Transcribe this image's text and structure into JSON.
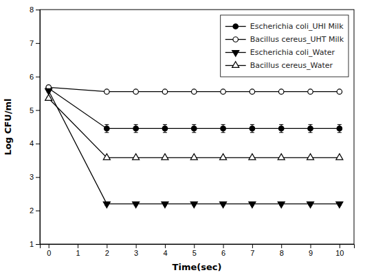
{
  "chart_data": {
    "type": "line",
    "xlabel": "Time(sec)",
    "ylabel": "Log CFU/ml",
    "x": [
      0,
      2,
      3,
      4,
      5,
      6,
      7,
      8,
      9,
      10
    ],
    "series": [
      {
        "name": "Escherichia coli_UHI Milk",
        "color": "#000000",
        "marker": "circle",
        "line_style": "solid",
        "values": [
          5.65,
          4.45,
          4.45,
          4.45,
          4.45,
          4.45,
          4.45,
          4.45,
          4.45,
          4.45
        ],
        "errors": [
          0.05,
          0.12,
          0.12,
          0.12,
          0.12,
          0.12,
          0.12,
          0.12,
          0.12,
          0.12
        ]
      },
      {
        "name": "Bacillus cereus_UHT Milk",
        "color": "#000000",
        "marker": "circle-open",
        "line_style": "solid",
        "values": [
          5.68,
          5.55,
          5.55,
          5.55,
          5.55,
          5.55,
          5.55,
          5.55,
          5.55,
          5.55
        ],
        "errors": [
          0.03,
          0.0,
          0.0,
          0.0,
          0.0,
          0.0,
          0.0,
          0.0,
          0.0,
          0.0
        ]
      },
      {
        "name": "Escherichia coli_Water",
        "color": "#000000",
        "marker": "triangle-down",
        "line_style": "solid",
        "values": [
          5.58,
          2.2,
          2.2,
          2.2,
          2.2,
          2.2,
          2.2,
          2.2,
          2.2,
          2.2
        ],
        "errors": [
          0.04,
          0.04,
          0.04,
          0.04,
          0.04,
          0.04,
          0.04,
          0.04,
          0.04,
          0.04
        ]
      },
      {
        "name": "Bacillus cereus_Water",
        "color": "#000000",
        "marker": "triangle-up-open",
        "line_style": "solid",
        "values": [
          5.35,
          3.58,
          3.58,
          3.58,
          3.58,
          3.58,
          3.58,
          3.58,
          3.58,
          3.58
        ],
        "errors": [
          0.04,
          0.0,
          0.0,
          0.0,
          0.0,
          0.0,
          0.0,
          0.0,
          0.0,
          0.0
        ]
      }
    ],
    "xlim": [
      -0.3,
      10.5
    ],
    "ylim": [
      1,
      8
    ],
    "xticks": [
      0,
      1,
      2,
      3,
      4,
      5,
      6,
      7,
      8,
      9,
      10
    ],
    "yticks": [
      1,
      2,
      3,
      4,
      5,
      6,
      7,
      8
    ],
    "legend": "upper-right",
    "grid": false
  }
}
